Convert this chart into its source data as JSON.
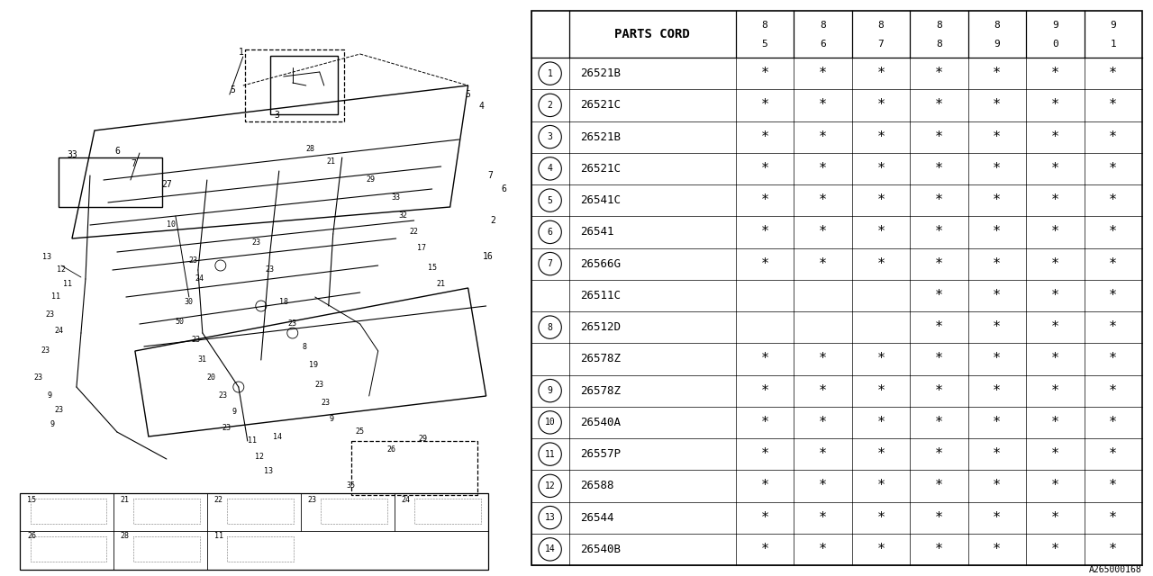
{
  "diagram_label": "A265000168",
  "bg_color": "#ffffff",
  "header_label": "PARTS CORD",
  "year_cols": [
    [
      "8",
      "5"
    ],
    [
      "8",
      "6"
    ],
    [
      "8",
      "7"
    ],
    [
      "8",
      "8"
    ],
    [
      "8",
      "9"
    ],
    [
      "9",
      "0"
    ],
    [
      "9",
      "1"
    ]
  ],
  "rows": [
    {
      "num": "1",
      "part": "26521B",
      "marks": [
        1,
        1,
        1,
        1,
        1,
        1,
        1
      ],
      "has_circle": true
    },
    {
      "num": "2",
      "part": "26521C",
      "marks": [
        1,
        1,
        1,
        1,
        1,
        1,
        1
      ],
      "has_circle": true
    },
    {
      "num": "3",
      "part": "26521B",
      "marks": [
        1,
        1,
        1,
        1,
        1,
        1,
        1
      ],
      "has_circle": true
    },
    {
      "num": "4",
      "part": "26521C",
      "marks": [
        1,
        1,
        1,
        1,
        1,
        1,
        1
      ],
      "has_circle": true
    },
    {
      "num": "5",
      "part": "26541C",
      "marks": [
        1,
        1,
        1,
        1,
        1,
        1,
        1
      ],
      "has_circle": true
    },
    {
      "num": "6",
      "part": "26541",
      "marks": [
        1,
        1,
        1,
        1,
        1,
        1,
        1
      ],
      "has_circle": true
    },
    {
      "num": "7",
      "part": "26566G",
      "marks": [
        1,
        1,
        1,
        1,
        1,
        1,
        1
      ],
      "has_circle": true
    },
    {
      "num": "",
      "part": "26511C",
      "marks": [
        0,
        0,
        0,
        1,
        1,
        1,
        1
      ],
      "has_circle": false
    },
    {
      "num": "8",
      "part": "26512D",
      "marks": [
        0,
        0,
        0,
        1,
        1,
        1,
        1
      ],
      "has_circle": true
    },
    {
      "num": "",
      "part": "26578Z",
      "marks": [
        1,
        1,
        1,
        1,
        1,
        1,
        1
      ],
      "has_circle": false
    },
    {
      "num": "9",
      "part": "26578Z",
      "marks": [
        1,
        1,
        1,
        1,
        1,
        1,
        1
      ],
      "has_circle": true
    },
    {
      "num": "10",
      "part": "26540A",
      "marks": [
        1,
        1,
        1,
        1,
        1,
        1,
        1
      ],
      "has_circle": true
    },
    {
      "num": "11",
      "part": "26557P",
      "marks": [
        1,
        1,
        1,
        1,
        1,
        1,
        1
      ],
      "has_circle": true
    },
    {
      "num": "12",
      "part": "26588",
      "marks": [
        1,
        1,
        1,
        1,
        1,
        1,
        1
      ],
      "has_circle": true
    },
    {
      "num": "13",
      "part": "26544",
      "marks": [
        1,
        1,
        1,
        1,
        1,
        1,
        1
      ],
      "has_circle": true
    },
    {
      "num": "14",
      "part": "26540B",
      "marks": [
        1,
        1,
        1,
        1,
        1,
        1,
        1
      ],
      "has_circle": true
    }
  ],
  "line_color": "#000000",
  "text_color": "#000000",
  "star_char": "*"
}
